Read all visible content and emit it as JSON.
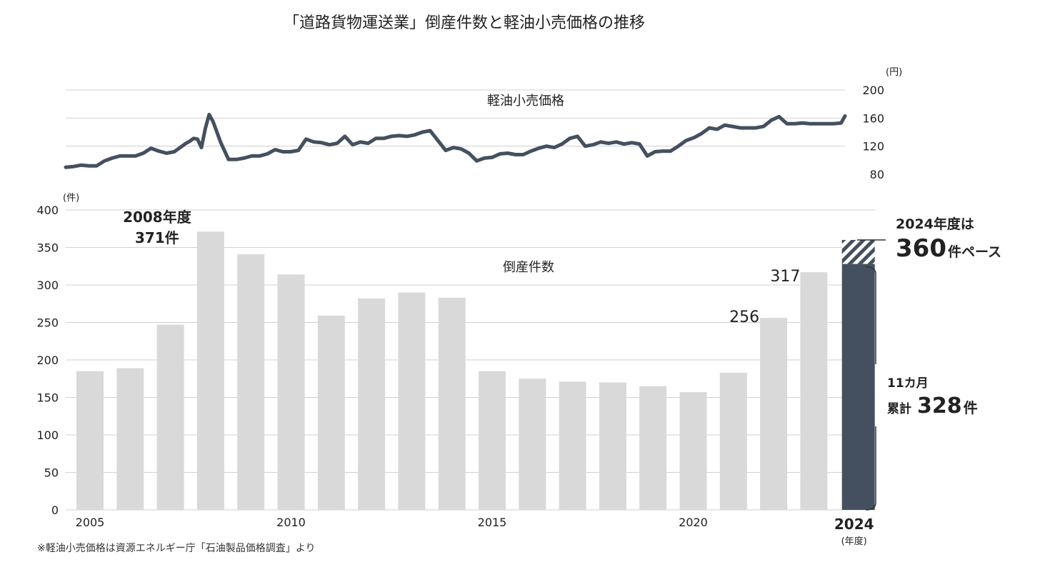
{
  "title": "「道路貨物運送業」倒産件数と軽油小売価格の推移",
  "footnote": "※軽油小売価格は資源エネルギー庁「石油製品価格調査」より",
  "colors": {
    "price_line": "#44505f",
    "bar": "#d9d9d9",
    "bar_2024": "#44505f",
    "grid": "#d0d0d0",
    "text": "#222222"
  },
  "chart_data": [
    {
      "type": "line",
      "title": "軽油小売価格",
      "ylabel": "(円)",
      "ylim": [
        80,
        200
      ],
      "yticks": [
        "80",
        "120",
        "160",
        "200"
      ],
      "grid": true,
      "x": [
        2005.0,
        2005.2,
        2005.4,
        2005.6,
        2005.8,
        2006.0,
        2006.2,
        2006.4,
        2006.6,
        2006.8,
        2007.0,
        2007.2,
        2007.4,
        2007.6,
        2007.8,
        2008.0,
        2008.1,
        2008.2,
        2008.3,
        2008.4,
        2008.5,
        2008.6,
        2008.7,
        2008.8,
        2009.0,
        2009.2,
        2009.4,
        2009.6,
        2009.8,
        2010.0,
        2010.2,
        2010.4,
        2010.6,
        2010.8,
        2011.0,
        2011.2,
        2011.4,
        2011.6,
        2011.8,
        2012.0,
        2012.2,
        2012.4,
        2012.6,
        2012.8,
        2013.0,
        2013.2,
        2013.4,
        2013.6,
        2013.8,
        2014.0,
        2014.2,
        2014.4,
        2014.6,
        2014.8,
        2015.0,
        2015.2,
        2015.4,
        2015.6,
        2015.8,
        2016.0,
        2016.2,
        2016.4,
        2016.6,
        2016.8,
        2017.0,
        2017.2,
        2017.4,
        2017.6,
        2017.8,
        2018.0,
        2018.2,
        2018.4,
        2018.6,
        2018.8,
        2019.0,
        2019.2,
        2019.4,
        2019.6,
        2019.8,
        2020.0,
        2020.2,
        2020.4,
        2020.6,
        2020.8,
        2021.0,
        2021.2,
        2021.4,
        2021.6,
        2021.8,
        2022.0,
        2022.2,
        2022.4,
        2022.6,
        2022.8,
        2023.0,
        2023.2,
        2023.4,
        2023.6,
        2023.8,
        2024.0,
        2024.2,
        2024.4,
        2024.6,
        2024.8,
        2025.0,
        2025.1
      ],
      "values": [
        90,
        91,
        93,
        92,
        92,
        99,
        103,
        106,
        106,
        106,
        110,
        117,
        113,
        110,
        112,
        120,
        124,
        127,
        131,
        130,
        118,
        145,
        165,
        155,
        125,
        101,
        101,
        103,
        106,
        106,
        109,
        115,
        112,
        112,
        114,
        130,
        126,
        125,
        122,
        124,
        134,
        122,
        126,
        124,
        131,
        131,
        134,
        135,
        134,
        136,
        140,
        142,
        128,
        114,
        118,
        116,
        110,
        99,
        103,
        104,
        109,
        110,
        108,
        108,
        113,
        117,
        120,
        118,
        123,
        131,
        134,
        120,
        122,
        126,
        124,
        126,
        123,
        125,
        123,
        106,
        112,
        113,
        113,
        120,
        128,
        132,
        138,
        146,
        144,
        150,
        148,
        146,
        146,
        146,
        148,
        157,
        162,
        152,
        152,
        153,
        152,
        152,
        152,
        152,
        153,
        163
      ]
    },
    {
      "type": "bar",
      "title": "倒産件数",
      "ylabel": "(件)",
      "xlabel": "(年度)",
      "ylim": [
        0,
        400
      ],
      "yticks": [
        "0",
        "50",
        "100",
        "150",
        "200",
        "250",
        "300",
        "350",
        "400"
      ],
      "xticks": [
        "2005",
        "2010",
        "2015",
        "2020",
        "2024"
      ],
      "grid": true,
      "categories": [
        "2005",
        "2006",
        "2007",
        "2008",
        "2009",
        "2010",
        "2011",
        "2012",
        "2013",
        "2014",
        "2015",
        "2016",
        "2017",
        "2018",
        "2019",
        "2020",
        "2021",
        "2022",
        "2023",
        "2024"
      ],
      "values": [
        185,
        189,
        247,
        371,
        341,
        314,
        259,
        282,
        290,
        283,
        185,
        175,
        171,
        170,
        165,
        157,
        183,
        256,
        317,
        328
      ],
      "projected_2024": 360,
      "data_labels": {
        "2008": {
          "line1": "2008年度",
          "line2": "371件"
        },
        "2022": "256",
        "2023": "317"
      },
      "annotation_pace": {
        "line1": "2024年度は",
        "number": "360",
        "suffix": "件ペース"
      },
      "annotation_cumulative": {
        "line1": "11カ月",
        "prefix": "累計",
        "number": "328",
        "suffix": "件"
      }
    }
  ]
}
